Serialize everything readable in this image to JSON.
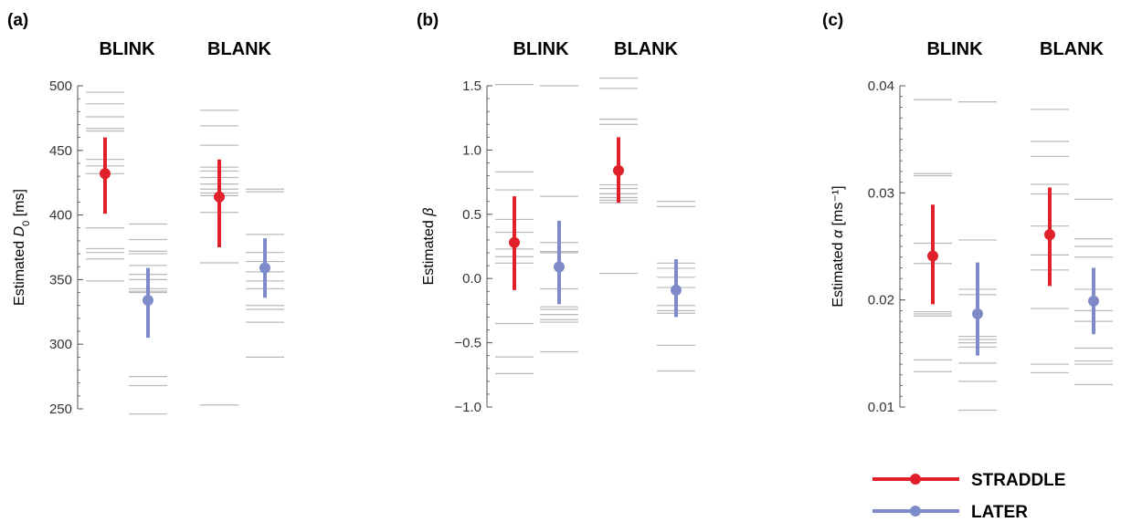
{
  "colors": {
    "straddle": "#e0202a",
    "later": "#7f8bc8",
    "rug": "#b8b8b8",
    "axis": "#555555"
  },
  "legend": {
    "items": [
      {
        "label": "STRADDLE",
        "color": "#e0202a"
      },
      {
        "label": "LATER",
        "color": "#7f8bc8"
      }
    ]
  },
  "chart_data": [
    {
      "type": "scatter",
      "panel": "(a)",
      "ylabel_main": "Estimated ",
      "ylabel_var": "D",
      "ylabel_sub": "0",
      "ylabel_suffix": " [ms]",
      "ylim": [
        250,
        500
      ],
      "yticks": [
        250,
        300,
        350,
        400,
        450,
        500
      ],
      "ytick_labels": [
        "250",
        "300",
        "350",
        "400",
        "450",
        "500"
      ],
      "minor_step": 10,
      "groups": [
        {
          "label": "BLINK",
          "series": [
            {
              "name": "STRADDLE",
              "mean": 432,
              "low": 401,
              "high": 460,
              "rug": [
                495,
                486,
                476,
                467,
                465,
                443,
                438,
                432,
                390,
                374,
                371,
                366,
                349
              ]
            },
            {
              "name": "LATER",
              "mean": 334,
              "low": 305,
              "high": 359,
              "rug": [
                393,
                381,
                372,
                370,
                361,
                354,
                350,
                343,
                341,
                340,
                275,
                268,
                246
              ]
            }
          ]
        },
        {
          "label": "BLANK",
          "series": [
            {
              "name": "STRADDLE",
              "mean": 414,
              "low": 375,
              "high": 443,
              "rug": [
                481,
                469,
                454,
                437,
                434,
                429,
                424,
                420,
                417,
                415,
                402,
                363,
                253
              ]
            },
            {
              "name": "LATER",
              "mean": 359,
              "low": 336,
              "high": 382,
              "rug": [
                420,
                418,
                385,
                371,
                364,
                356,
                349,
                343,
                330,
                327,
                317,
                290
              ]
            }
          ]
        }
      ]
    },
    {
      "type": "scatter",
      "panel": "(b)",
      "ylabel_main": "Estimated ",
      "ylabel_var": "β",
      "ylabel_sub": "",
      "ylabel_suffix": "",
      "ylim": [
        -1.0,
        1.5
      ],
      "yticks": [
        -1.0,
        -0.5,
        0.0,
        0.5,
        1.0,
        1.5
      ],
      "ytick_labels": [
        "−1.0",
        "−0.5",
        "0.0",
        "0.5",
        "1.0",
        "1.5"
      ],
      "minor_step": 0.1,
      "groups": [
        {
          "label": "BLINK",
          "series": [
            {
              "name": "STRADDLE",
              "mean": 0.28,
              "low": -0.09,
              "high": 0.64,
              "rug": [
                1.51,
                0.83,
                0.69,
                0.46,
                0.36,
                0.23,
                0.17,
                0.12,
                -0.35,
                -0.61,
                -0.74
              ]
            },
            {
              "name": "LATER",
              "mean": 0.09,
              "low": -0.2,
              "high": 0.45,
              "rug": [
                1.5,
                0.64,
                0.28,
                0.21,
                0.2,
                -0.08,
                -0.22,
                -0.24,
                -0.28,
                -0.32,
                -0.34,
                -0.57
              ]
            }
          ]
        },
        {
          "label": "BLANK",
          "series": [
            {
              "name": "STRADDLE",
              "mean": 0.84,
              "low": 0.59,
              "high": 1.1,
              "rug": [
                1.56,
                1.48,
                1.24,
                1.2,
                0.73,
                0.7,
                0.66,
                0.63,
                0.61,
                0.59,
                0.04
              ]
            },
            {
              "name": "LATER",
              "mean": -0.09,
              "low": -0.3,
              "high": 0.15,
              "rug": [
                0.6,
                0.56,
                0.12,
                0.08,
                0.01,
                -0.07,
                -0.21,
                -0.25,
                -0.27,
                -0.52,
                -0.72
              ]
            }
          ]
        }
      ]
    },
    {
      "type": "scatter",
      "panel": "(c)",
      "ylabel_main": "Estimated ",
      "ylabel_var": "α",
      "ylabel_sub": "",
      "ylabel_suffix": " [ms⁻¹]",
      "ylim": [
        0.01,
        0.04
      ],
      "yticks": [
        0.01,
        0.02,
        0.03,
        0.04
      ],
      "ytick_labels": [
        "0.01",
        "0.02",
        "0.03",
        "0.04"
      ],
      "minor_step": 0.001,
      "groups": [
        {
          "label": "BLINK",
          "series": [
            {
              "name": "STRADDLE",
              "mean": 0.0241,
              "low": 0.0196,
              "high": 0.0289,
              "rug": [
                0.0387,
                0.0318,
                0.0316,
                0.0253,
                0.0234,
                0.0189,
                0.0187,
                0.0185,
                0.0144,
                0.0133
              ]
            },
            {
              "name": "LATER",
              "mean": 0.0187,
              "low": 0.0148,
              "high": 0.0235,
              "rug": [
                0.0385,
                0.0256,
                0.021,
                0.0205,
                0.0166,
                0.0163,
                0.016,
                0.0156,
                0.0141,
                0.0124,
                0.0097
              ]
            }
          ]
        },
        {
          "label": "BLANK",
          "series": [
            {
              "name": "STRADDLE",
              "mean": 0.0261,
              "low": 0.0213,
              "high": 0.0305,
              "rug": [
                0.0378,
                0.0348,
                0.0334,
                0.0308,
                0.0299,
                0.0269,
                0.0242,
                0.0228,
                0.0192,
                0.014,
                0.0132
              ]
            },
            {
              "name": "LATER",
              "mean": 0.0199,
              "low": 0.0168,
              "high": 0.023,
              "rug": [
                0.0294,
                0.0257,
                0.025,
                0.024,
                0.021,
                0.019,
                0.018,
                0.0155,
                0.0143,
                0.014,
                0.0121
              ]
            }
          ]
        }
      ]
    }
  ]
}
